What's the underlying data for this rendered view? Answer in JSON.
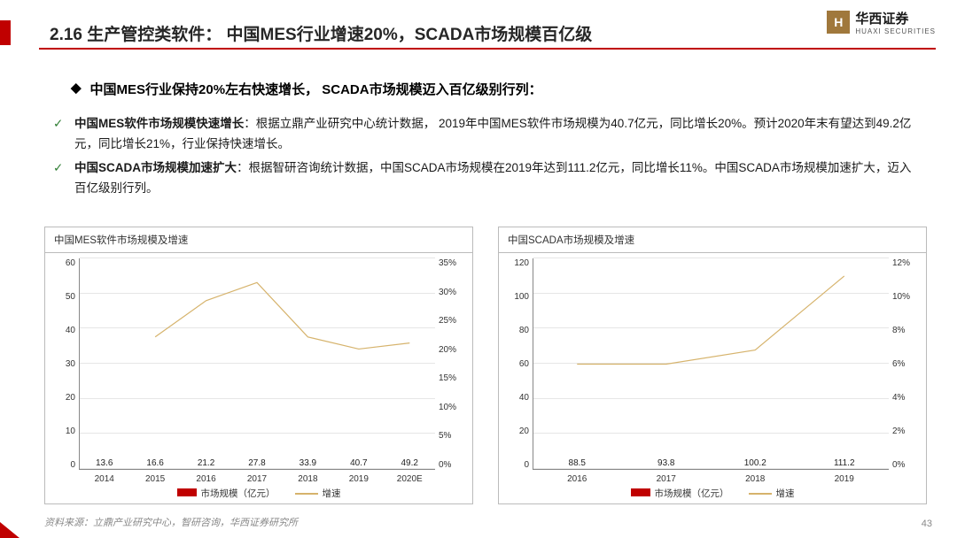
{
  "header": {
    "title": "2.16 生产管控类软件： 中国MES行业增速20%，SCADA市场规模百亿级"
  },
  "logo": {
    "cn": "华西证券",
    "en": "HUAXI SECURITIES",
    "mark": "H"
  },
  "lead": "中国MES行业保持20%左右快速增长， SCADA市场规模迈入百亿级别行列：",
  "bullets": [
    {
      "bold": "中国MES软件市场规模快速增长",
      "rest": "：根据立鼎产业研究中心统计数据， 2019年中国MES软件市场规模为40.7亿元，同比增长20%。预计2020年末有望达到49.2亿元，同比增长21%，行业保持快速增长。"
    },
    {
      "bold": "中国SCADA市场规模加速扩大",
      "rest": "：根据智研咨询统计数据，中国SCADA市场规模在2019年达到111.2亿元，同比增长11%。中国SCADA市场规模加速扩大，迈入百亿级别行列。"
    }
  ],
  "chart1": {
    "title": "中国MES软件市场规模及增速",
    "type": "bar+line",
    "categories": [
      "2014",
      "2015",
      "2016",
      "2017",
      "2018",
      "2019",
      "2020E"
    ],
    "bar_values": [
      13.6,
      16.6,
      21.2,
      27.8,
      33.9,
      40.7,
      49.2
    ],
    "line_values_pct": [
      null,
      22,
      28,
      31,
      22,
      20,
      21
    ],
    "y_left": {
      "min": 0,
      "max": 60,
      "step": 10
    },
    "y_right": {
      "min": 0,
      "max": 35,
      "step": 5,
      "suffix": "%"
    },
    "bar_color": "#c00000",
    "line_color": "#d6b36c",
    "grid_color": "#e6e6e6",
    "legend_bar": "市场规模（亿元）",
    "legend_line": "增速"
  },
  "chart2": {
    "title": "中国SCADA市场规模及增速",
    "type": "bar+line",
    "categories": [
      "2016",
      "2017",
      "2018",
      "2019"
    ],
    "bar_values": [
      88.5,
      93.8,
      100.2,
      111.2
    ],
    "line_values_pct": [
      6.0,
      6.0,
      6.8,
      11.0
    ],
    "y_left": {
      "min": 0,
      "max": 120,
      "step": 20
    },
    "y_right": {
      "min": 0,
      "max": 12,
      "step": 2,
      "suffix": "%"
    },
    "bar_color": "#c00000",
    "line_color": "#d6b36c",
    "grid_color": "#e6e6e6",
    "legend_bar": "市场规模（亿元）",
    "legend_line": "增速"
  },
  "footer": {
    "source": "资料来源：立鼎产业研究中心，智研咨询，华西证券研究所",
    "page": "43"
  }
}
